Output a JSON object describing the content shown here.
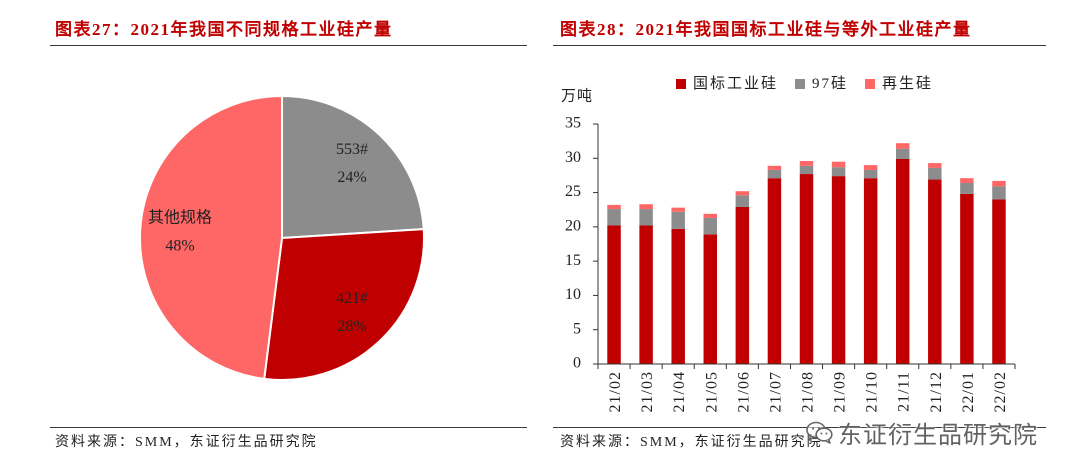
{
  "panels": {
    "left": {
      "source": "资料来源：SMM，东证衍生品研究院"
    },
    "right": {
      "source": "资料来源：SMM，东证衍生品研究院"
    }
  },
  "watermark": {
    "text": "东证衍生品研究院",
    "icon": "wechat-icon"
  },
  "colors": {
    "title": "#C00000",
    "rule": "#3a3a3a"
  },
  "chart_data": [
    {
      "type": "pie",
      "title": "图表27：2021年我国不同规格工业硅产量",
      "slices": [
        {
          "label": "553#",
          "value": 24,
          "value_label": "24%",
          "color": "#8C8C8C"
        },
        {
          "label": "421#",
          "value": 28,
          "value_label": "28%",
          "color": "#C00000"
        },
        {
          "label": "其他规格",
          "value": 48,
          "value_label": "48%",
          "color": "#FF6666"
        }
      ]
    },
    {
      "type": "bar",
      "stacked": true,
      "title": "图表28：2021年我国国标工业硅与等外工业硅产量",
      "ylabel": "万吨",
      "xlabel": "",
      "ylim": [
        0,
        35
      ],
      "yticks": [
        0,
        5,
        10,
        15,
        20,
        25,
        30,
        35
      ],
      "grid": false,
      "legend": "top",
      "categories": [
        "21/02",
        "21/03",
        "21/04",
        "21/05",
        "21/06",
        "21/07",
        "21/08",
        "21/09",
        "21/10",
        "21/11",
        "21/12",
        "22/01",
        "22/02"
      ],
      "series": [
        {
          "name": "国标工业硅",
          "color": "#C00000",
          "values": [
            20.2,
            20.2,
            19.7,
            18.9,
            22.9,
            27.1,
            27.7,
            27.4,
            27.1,
            29.9,
            26.9,
            24.8,
            24.0
          ]
        },
        {
          "name": "97硅",
          "color": "#8C8C8C",
          "values": [
            2.4,
            2.4,
            2.5,
            2.4,
            1.7,
            1.2,
            1.2,
            1.3,
            1.2,
            1.5,
            1.7,
            1.6,
            1.9
          ]
        },
        {
          "name": "再生硅",
          "color": "#FF6666",
          "values": [
            0.6,
            0.7,
            0.6,
            0.6,
            0.6,
            0.6,
            0.7,
            0.8,
            0.7,
            0.8,
            0.7,
            0.7,
            0.8
          ]
        }
      ]
    }
  ]
}
